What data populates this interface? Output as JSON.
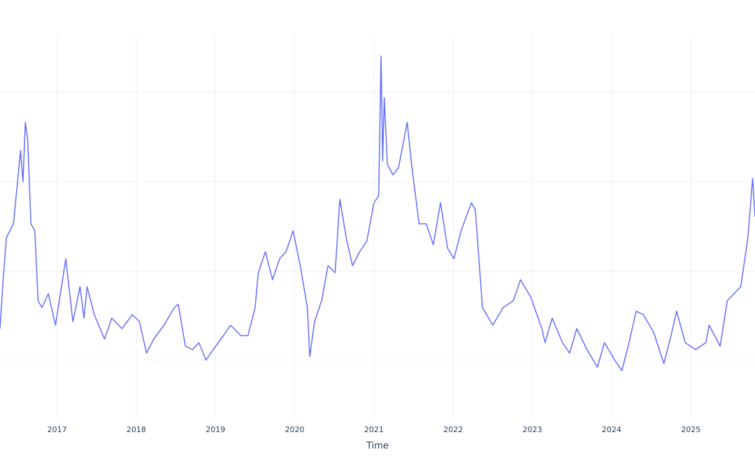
{
  "chart_data": {
    "type": "line",
    "x_label": "Time",
    "xlim": [
      2016.28,
      2025.81
    ],
    "xticks": [
      2017,
      2018,
      2019,
      2020,
      2021,
      2022,
      2023,
      2024,
      2025
    ],
    "ylim": [
      0,
      550
    ],
    "ygrid": [
      85,
      212,
      340,
      468
    ],
    "grid": true,
    "series": [
      {
        "color": "#636efa",
        "x": [
          2016.28,
          2016.32,
          2016.36,
          2016.45,
          2016.54,
          2016.57,
          2016.6,
          2016.63,
          2016.67,
          2016.72,
          2016.76,
          2016.81,
          2016.89,
          2016.98,
          2017.07,
          2017.11,
          2017.2,
          2017.29,
          2017.34,
          2017.38,
          2017.47,
          2017.6,
          2017.69,
          2017.82,
          2017.95,
          2018.04,
          2018.13,
          2018.22,
          2018.35,
          2018.48,
          2018.53,
          2018.62,
          2018.71,
          2018.79,
          2018.88,
          2018.97,
          2019.1,
          2019.19,
          2019.32,
          2019.41,
          2019.5,
          2019.54,
          2019.63,
          2019.72,
          2019.81,
          2019.89,
          2019.98,
          2020.07,
          2020.16,
          2020.19,
          2020.25,
          2020.34,
          2020.42,
          2020.51,
          2020.57,
          2020.65,
          2020.73,
          2020.82,
          2020.91,
          2021.0,
          2021.06,
          2021.09,
          2021.11,
          2021.13,
          2021.17,
          2021.24,
          2021.31,
          2021.42,
          2021.48,
          2021.57,
          2021.66,
          2021.75,
          2021.84,
          2021.93,
          2022.01,
          2022.1,
          2022.23,
          2022.28,
          2022.37,
          2022.5,
          2022.63,
          2022.76,
          2022.85,
          2022.98,
          2023.12,
          2023.16,
          2023.25,
          2023.38,
          2023.47,
          2023.56,
          2023.69,
          2023.82,
          2023.91,
          2024.04,
          2024.13,
          2024.22,
          2024.31,
          2024.4,
          2024.53,
          2024.66,
          2024.75,
          2024.82,
          2024.93,
          2025.06,
          2025.19,
          2025.23,
          2025.37,
          2025.46,
          2025.63,
          2025.72,
          2025.78,
          2025.81
        ],
        "values": [
          130,
          200,
          260,
          280,
          385,
          340,
          425,
          400,
          280,
          270,
          170,
          160,
          180,
          135,
          200,
          230,
          140,
          190,
          145,
          190,
          150,
          115,
          145,
          130,
          150,
          140,
          95,
          115,
          135,
          160,
          165,
          105,
          100,
          110,
          85,
          100,
          120,
          135,
          120,
          120,
          160,
          210,
          240,
          200,
          230,
          240,
          270,
          220,
          160,
          90,
          140,
          170,
          220,
          210,
          315,
          260,
          220,
          240,
          255,
          310,
          320,
          520,
          370,
          460,
          365,
          350,
          360,
          425,
          360,
          280,
          280,
          250,
          310,
          245,
          230,
          270,
          310,
          300,
          160,
          135,
          160,
          170,
          200,
          175,
          130,
          110,
          145,
          110,
          95,
          130,
          100,
          75,
          110,
          85,
          70,
          110,
          155,
          150,
          125,
          80,
          120,
          155,
          110,
          100,
          110,
          135,
          105,
          170,
          190,
          260,
          345,
          290
        ]
      }
    ]
  }
}
